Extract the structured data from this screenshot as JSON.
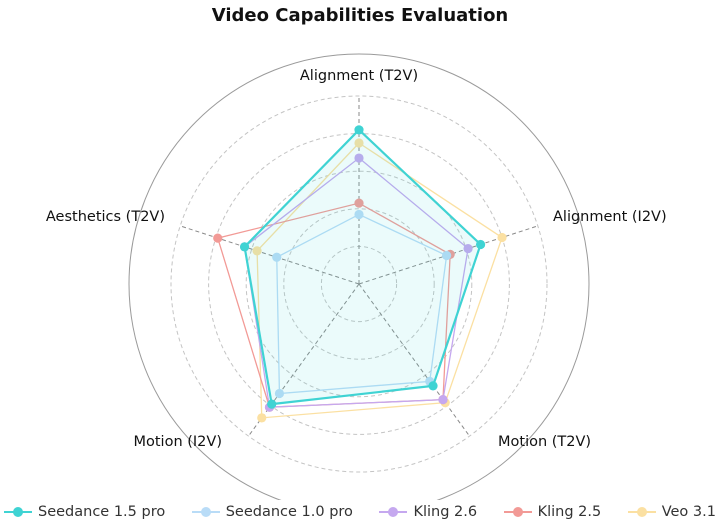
{
  "chart_data": {
    "type": "radar",
    "title": "Video Capabilities Evaluation",
    "axes": [
      "Alignment (T2V)",
      "Alignment (I2V)",
      "Motion (T2V)",
      "Motion (I2V)",
      "Aesthetics (T2V)"
    ],
    "range": [
      0,
      1
    ],
    "rings": [
      0.2,
      0.4,
      0.6,
      0.8
    ],
    "grid": true,
    "legend_position": "bottom",
    "series": [
      {
        "name": "Seedance 1.5 pro",
        "color": "#3fd3d3",
        "values": [
          0.82,
          0.68,
          0.67,
          0.79,
          0.64
        ],
        "filled": true
      },
      {
        "name": "Seedance 1.0 pro",
        "color": "#b9dcf7",
        "values": [
          0.37,
          0.49,
          0.64,
          0.72,
          0.46
        ]
      },
      {
        "name": "Kling 2.6",
        "color": "#c5a8ef",
        "values": [
          0.67,
          0.61,
          0.76,
          0.81,
          0.64
        ]
      },
      {
        "name": "Kling 2.5",
        "color": "#f29a96",
        "values": [
          0.43,
          0.51,
          0.76,
          0.81,
          0.79
        ]
      },
      {
        "name": "Veo 3.1",
        "color": "#fbe0a2",
        "values": [
          0.75,
          0.8,
          0.78,
          0.88,
          0.57
        ]
      }
    ]
  }
}
